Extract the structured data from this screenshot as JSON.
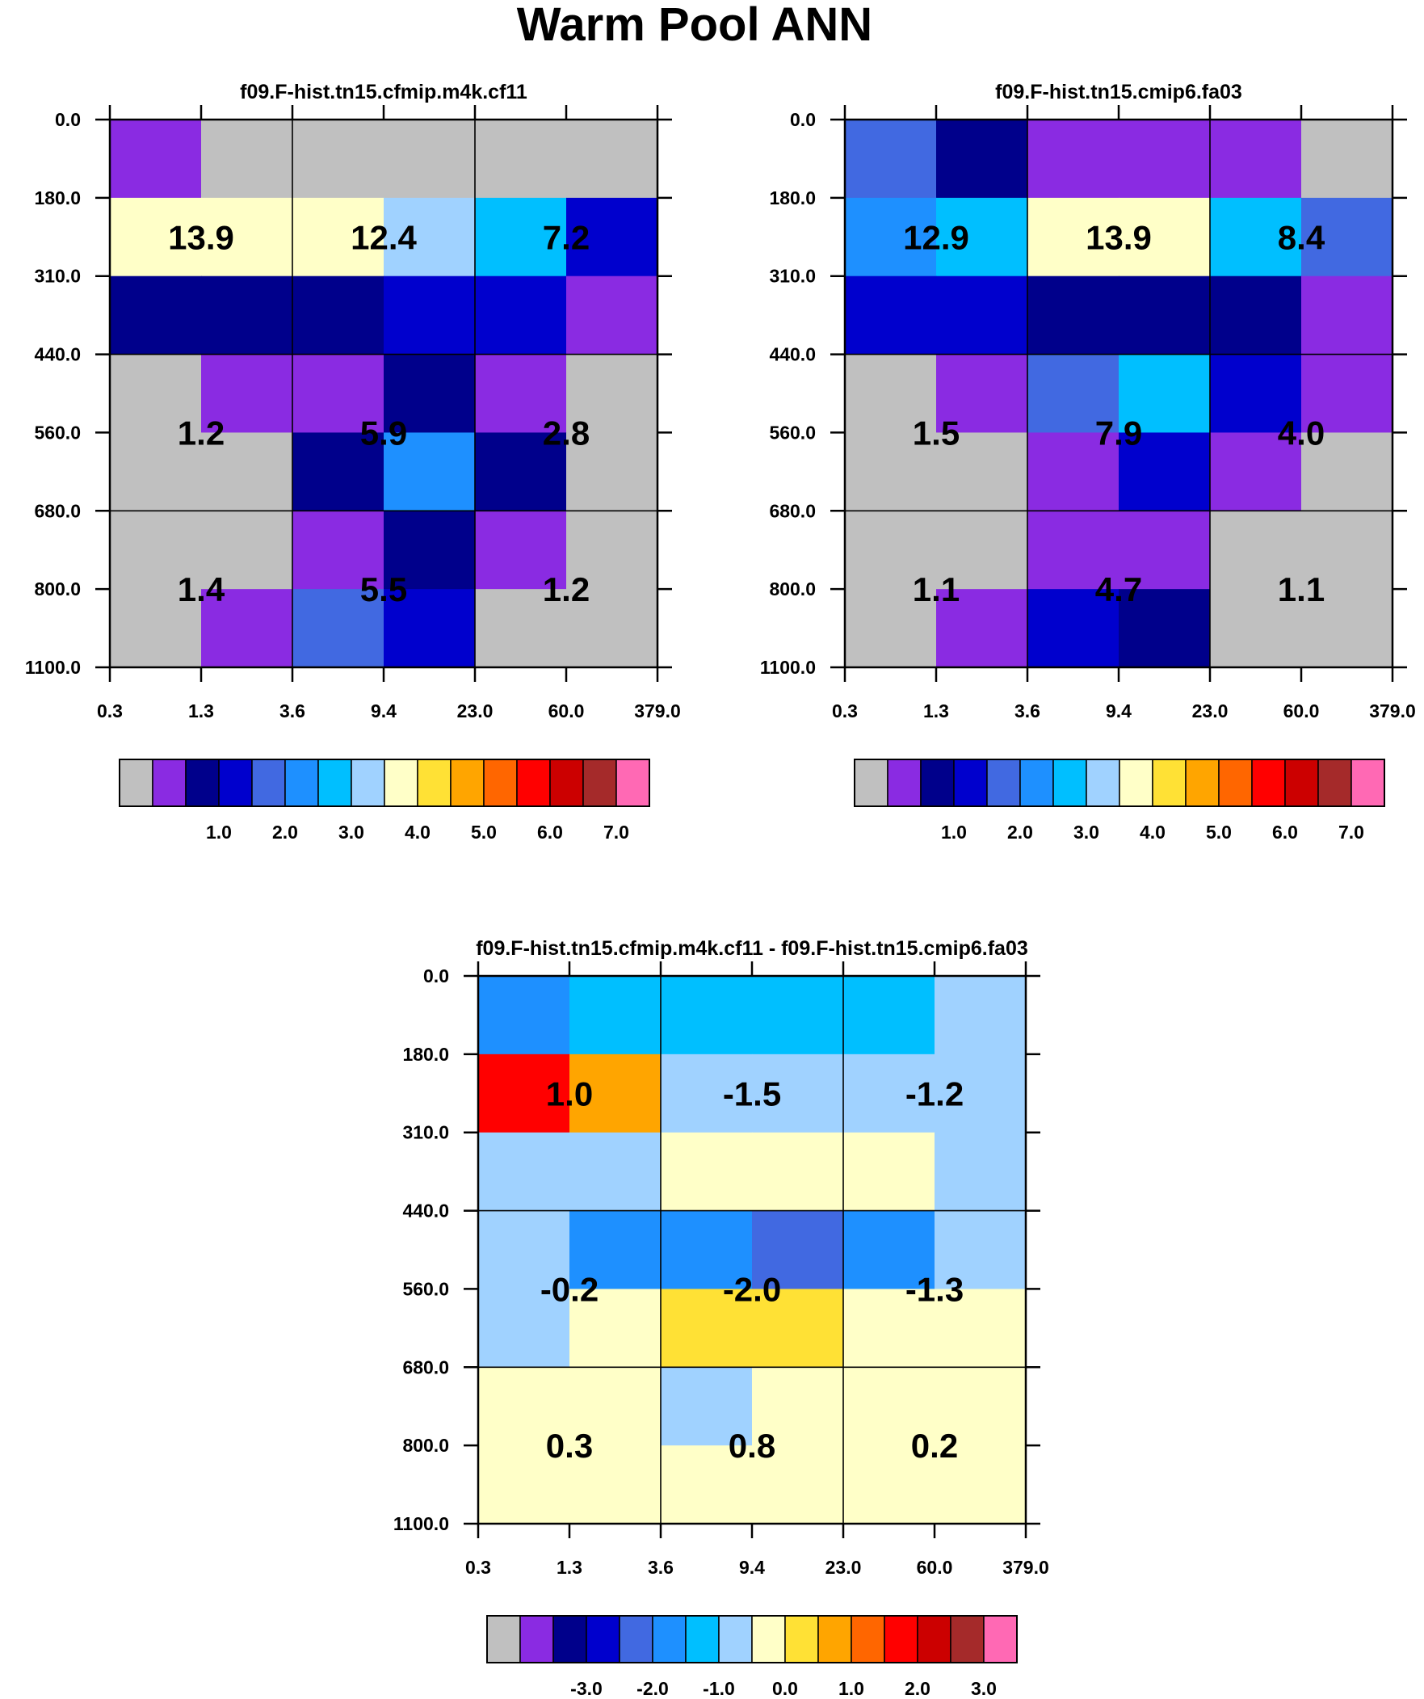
{
  "figure_title": "Warm Pool ANN",
  "chart_data": [
    {
      "type": "heatmap",
      "title": "f09.F-hist.tn15.cfmip.m4k.cf11",
      "x_ticks": [
        "0.3",
        "1.3",
        "3.6",
        "9.4",
        "23.0",
        "60.0",
        "379.0"
      ],
      "y_ticks": [
        "0.0",
        "180.0",
        "310.0",
        "440.0",
        "560.0",
        "680.0",
        "800.0",
        "1100.0"
      ],
      "cells": [
        [
          1,
          0,
          0,
          0,
          0,
          0
        ],
        [
          8,
          8,
          8,
          7,
          6,
          3
        ],
        [
          2,
          2,
          2,
          3,
          3,
          1
        ],
        [
          0,
          1,
          1,
          2,
          1,
          0
        ],
        [
          0,
          0,
          2,
          5,
          2,
          0
        ],
        [
          0,
          0,
          1,
          2,
          1,
          0
        ],
        [
          0,
          1,
          4,
          3,
          0,
          0
        ]
      ],
      "annotations": [
        {
          "row": 1,
          "col": 0,
          "text": "13.9"
        },
        {
          "row": 1,
          "col": 1,
          "text": "12.4"
        },
        {
          "row": 1,
          "col": 2,
          "text": "7.2"
        },
        {
          "row": 2,
          "col": 0,
          "text": "1.2"
        },
        {
          "row": 2,
          "col": 1,
          "text": "5.9"
        },
        {
          "row": 2,
          "col": 2,
          "text": "2.8"
        },
        {
          "row": 3,
          "col": 0,
          "text": "1.4"
        },
        {
          "row": 3,
          "col": 1,
          "text": "5.5"
        },
        {
          "row": 3,
          "col": 2,
          "text": "1.2"
        }
      ],
      "colorbar": [
        "1.0",
        "2.0",
        "3.0",
        "4.0",
        "5.0",
        "6.0",
        "7.0"
      ]
    },
    {
      "type": "heatmap",
      "title": "f09.F-hist.tn15.cmip6.fa03",
      "x_ticks": [
        "0.3",
        "1.3",
        "3.6",
        "9.4",
        "23.0",
        "60.0",
        "379.0"
      ],
      "y_ticks": [
        "0.0",
        "180.0",
        "310.0",
        "440.0",
        "560.0",
        "680.0",
        "800.0",
        "1100.0"
      ],
      "cells": [
        [
          4,
          2,
          1,
          1,
          1,
          0
        ],
        [
          5,
          6,
          8,
          8,
          6,
          4
        ],
        [
          3,
          3,
          2,
          2,
          2,
          1
        ],
        [
          0,
          1,
          4,
          6,
          3,
          1
        ],
        [
          0,
          0,
          1,
          3,
          1,
          0
        ],
        [
          0,
          0,
          1,
          1,
          0,
          0
        ],
        [
          0,
          1,
          3,
          2,
          0,
          0
        ]
      ],
      "annotations": [
        {
          "row": 1,
          "col": 0,
          "text": "12.9"
        },
        {
          "row": 1,
          "col": 1,
          "text": "13.9"
        },
        {
          "row": 1,
          "col": 2,
          "text": "8.4"
        },
        {
          "row": 2,
          "col": 0,
          "text": "1.5"
        },
        {
          "row": 2,
          "col": 1,
          "text": "7.9"
        },
        {
          "row": 2,
          "col": 2,
          "text": "4.0"
        },
        {
          "row": 3,
          "col": 0,
          "text": "1.1"
        },
        {
          "row": 3,
          "col": 1,
          "text": "4.7"
        },
        {
          "row": 3,
          "col": 2,
          "text": "1.1"
        }
      ],
      "colorbar": [
        "1.0",
        "2.0",
        "3.0",
        "4.0",
        "5.0",
        "6.0",
        "7.0"
      ]
    },
    {
      "type": "heatmap",
      "title": "f09.F-hist.tn15.cfmip.m4k.cf11 - f09.F-hist.tn15.cmip6.fa03",
      "x_ticks": [
        "0.3",
        "1.3",
        "3.6",
        "9.4",
        "23.0",
        "60.0",
        "379.0"
      ],
      "y_ticks": [
        "0.0",
        "180.0",
        "310.0",
        "440.0",
        "560.0",
        "680.0",
        "800.0",
        "1100.0"
      ],
      "cells": [
        [
          5,
          6,
          6,
          6,
          6,
          7
        ],
        [
          12,
          10,
          7,
          7,
          7,
          7
        ],
        [
          7,
          7,
          8,
          8,
          8,
          7
        ],
        [
          7,
          5,
          5,
          4,
          5,
          7
        ],
        [
          7,
          8,
          9,
          9,
          8,
          8
        ],
        [
          8,
          8,
          7,
          8,
          8,
          8
        ],
        [
          8,
          8,
          8,
          8,
          8,
          8
        ]
      ],
      "annotations": [
        {
          "row": 1,
          "col": 0,
          "text": "1.0"
        },
        {
          "row": 1,
          "col": 1,
          "text": "-1.5"
        },
        {
          "row": 1,
          "col": 2,
          "text": "-1.2"
        },
        {
          "row": 2,
          "col": 0,
          "text": "-0.2"
        },
        {
          "row": 2,
          "col": 1,
          "text": "-2.0"
        },
        {
          "row": 2,
          "col": 2,
          "text": "-1.3"
        },
        {
          "row": 3,
          "col": 0,
          "text": "0.3"
        },
        {
          "row": 3,
          "col": 1,
          "text": "0.8"
        },
        {
          "row": 3,
          "col": 2,
          "text": "0.2"
        }
      ],
      "colorbar": [
        "-3.0",
        "-2.0",
        "-1.0",
        "0.0",
        "1.0",
        "2.0",
        "3.0"
      ]
    }
  ],
  "palette": [
    "#c0c0c0",
    "#8a2be2",
    "#00008b",
    "#0000cd",
    "#4169e1",
    "#1e90ff",
    "#00bfff",
    "#a0d2ff",
    "#ffffc8",
    "#ffe135",
    "#ffa500",
    "#ff6600",
    "#ff0000",
    "#cc0000",
    "#a52a2a",
    "#ff69b4"
  ]
}
